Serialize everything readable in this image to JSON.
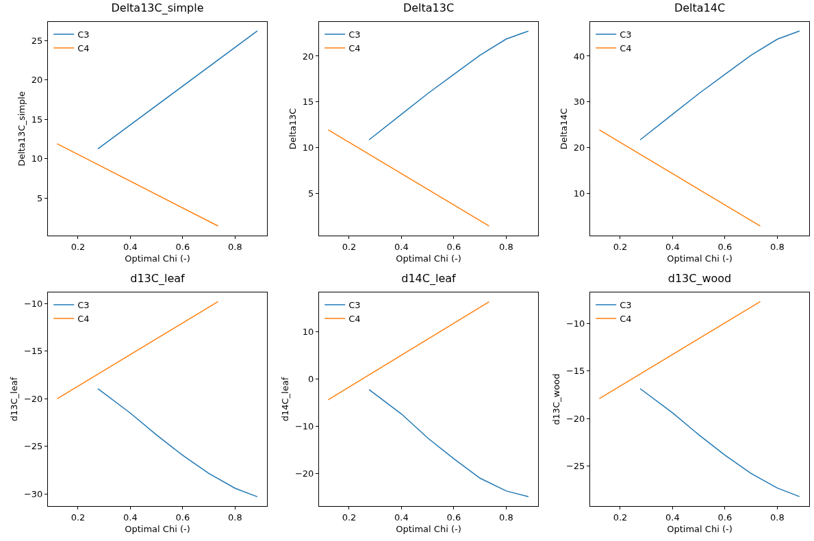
{
  "chart_data": [
    {
      "type": "line",
      "title": "Delta13C_simple",
      "xlabel": "Optimal Chi (-)",
      "ylabel": "Delta13C_simple",
      "xlim": [
        0.085,
        0.922
      ],
      "xticks": [
        0.2,
        0.4,
        0.6,
        0.8
      ],
      "ylim": [
        0.21,
        27.4
      ],
      "yticks": [
        5,
        10,
        15,
        20,
        25
      ],
      "legend": "top left",
      "series": [
        {
          "name": "C3",
          "color": "#1f77b4",
          "x": [
            0.276,
            0.885
          ],
          "values": [
            11.25,
            26.25
          ]
        },
        {
          "name": "C4",
          "color": "#ff7f0e",
          "x": [
            0.12,
            0.735
          ],
          "values": [
            11.9,
            1.43
          ]
        }
      ]
    },
    {
      "type": "line",
      "title": "Delta13C",
      "xlabel": "Optimal Chi (-)",
      "ylabel": "Delta13C",
      "xlim": [
        0.085,
        0.922
      ],
      "xticks": [
        0.2,
        0.4,
        0.6,
        0.8
      ],
      "ylim": [
        0.39,
        23.74
      ],
      "yticks": [
        5,
        10,
        15,
        20
      ],
      "legend": "top left",
      "series": [
        {
          "name": "C3",
          "color": "#1f77b4",
          "x": [
            0.276,
            0.4,
            0.5,
            0.6,
            0.7,
            0.8,
            0.885
          ],
          "values": [
            10.85,
            13.65,
            15.9,
            18.0,
            20.1,
            21.87,
            22.74
          ]
        },
        {
          "name": "C4",
          "color": "#ff7f0e",
          "x": [
            0.12,
            0.735
          ],
          "values": [
            11.95,
            1.43
          ]
        }
      ]
    },
    {
      "type": "line",
      "title": "Delta14C",
      "xlabel": "Optimal Chi (-)",
      "ylabel": "Delta14C",
      "xlim": [
        0.085,
        0.922
      ],
      "xticks": [
        0.2,
        0.4,
        0.6,
        0.8
      ],
      "ylim": [
        0.78,
        47.48
      ],
      "yticks": [
        10,
        20,
        30,
        40
      ],
      "legend": "top left",
      "series": [
        {
          "name": "C3",
          "color": "#1f77b4",
          "x": [
            0.276,
            0.4,
            0.5,
            0.6,
            0.7,
            0.8,
            0.885
          ],
          "values": [
            21.7,
            27.3,
            31.8,
            36.0,
            40.2,
            43.7,
            45.5
          ]
        },
        {
          "name": "C4",
          "color": "#ff7f0e",
          "x": [
            0.12,
            0.735
          ],
          "values": [
            23.9,
            2.87
          ]
        }
      ]
    },
    {
      "type": "line",
      "title": "d13C_leaf",
      "xlabel": "Optimal Chi (-)",
      "ylabel": "d13C_leaf",
      "xlim": [
        0.085,
        0.922
      ],
      "xticks": [
        0.2,
        0.4,
        0.6,
        0.8
      ],
      "ylim": [
        -31.27,
        -8.82
      ],
      "yticks": [
        {
          "value": -30,
          "label": "−30"
        },
        {
          "value": -25,
          "label": "−25"
        },
        {
          "value": -20,
          "label": "−20"
        },
        {
          "value": -15,
          "label": "−15"
        },
        {
          "value": -10,
          "label": "−10"
        }
      ],
      "legend": "top left",
      "series": [
        {
          "name": "C3",
          "color": "#1f77b4",
          "x": [
            0.276,
            0.4,
            0.5,
            0.6,
            0.7,
            0.8,
            0.885
          ],
          "values": [
            -18.94,
            -21.5,
            -23.8,
            -25.94,
            -27.85,
            -29.4,
            -30.29
          ]
        },
        {
          "name": "C4",
          "color": "#ff7f0e",
          "x": [
            0.12,
            0.735
          ],
          "values": [
            -20.0,
            -9.78
          ]
        }
      ]
    },
    {
      "type": "line",
      "title": "d14C_leaf",
      "xlabel": "Optimal Chi (-)",
      "ylabel": "d14C_leaf",
      "xlim": [
        0.085,
        0.922
      ],
      "xticks": [
        0.2,
        0.4,
        0.6,
        0.8
      ],
      "ylim": [
        -26.9,
        18.26
      ],
      "yticks": [
        {
          "value": -20,
          "label": "−20"
        },
        {
          "value": -10,
          "label": "−10"
        },
        0,
        10
      ],
      "legend": "top left",
      "series": [
        {
          "name": "C3",
          "color": "#1f77b4",
          "x": [
            0.276,
            0.4,
            0.5,
            0.6,
            0.7,
            0.8,
            0.885
          ],
          "values": [
            -2.27,
            -7.44,
            -12.5,
            -16.9,
            -21.0,
            -23.7,
            -24.9
          ]
        },
        {
          "name": "C4",
          "color": "#ff7f0e",
          "x": [
            0.12,
            0.735
          ],
          "values": [
            -4.44,
            16.3
          ]
        }
      ]
    },
    {
      "type": "line",
      "title": "d13C_wood",
      "xlabel": "Optimal Chi (-)",
      "ylabel": "d13C_wood",
      "xlim": [
        0.085,
        0.922
      ],
      "xticks": [
        0.2,
        0.4,
        0.6,
        0.8
      ],
      "ylim": [
        -29.2,
        -6.73
      ],
      "yticks": [
        {
          "value": -25,
          "label": "−25"
        },
        {
          "value": -20,
          "label": "−20"
        },
        {
          "value": -15,
          "label": "−15"
        },
        {
          "value": -10,
          "label": "−10"
        }
      ],
      "legend": "top left",
      "series": [
        {
          "name": "C3",
          "color": "#1f77b4",
          "x": [
            0.276,
            0.4,
            0.5,
            0.6,
            0.7,
            0.8,
            0.885
          ],
          "values": [
            -16.85,
            -19.4,
            -21.7,
            -23.85,
            -25.77,
            -27.3,
            -28.2
          ]
        },
        {
          "name": "C4",
          "color": "#ff7f0e",
          "x": [
            0.12,
            0.735
          ],
          "values": [
            -17.9,
            -7.7
          ]
        }
      ]
    }
  ]
}
